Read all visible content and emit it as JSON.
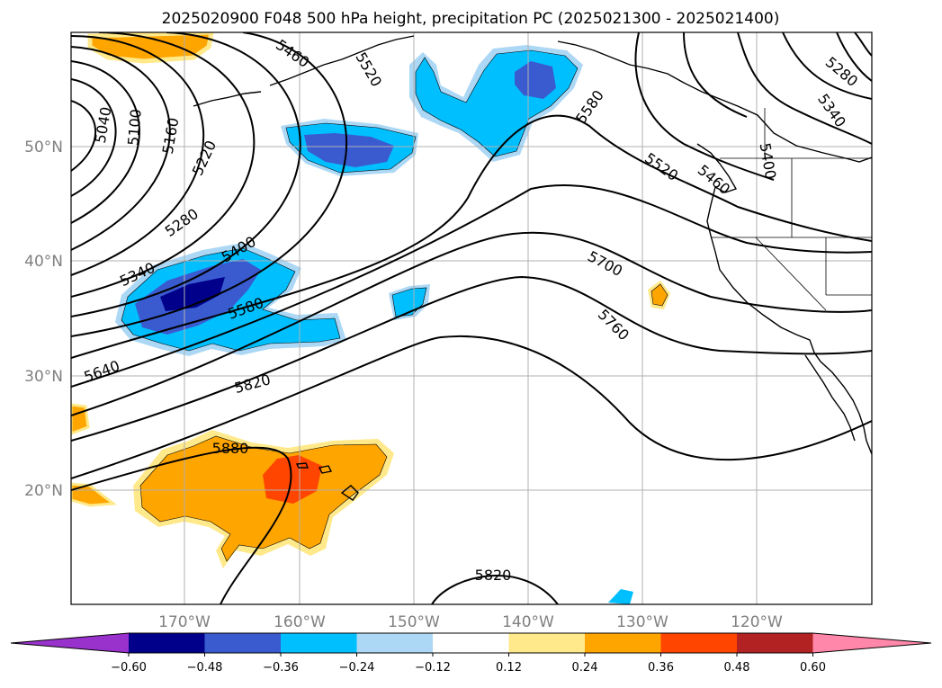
{
  "title": "2025020900 F048 500 hPa height, precipitation PC (2025021300 - 2025021400)",
  "lat_labels": [
    "50°N",
    "40°N",
    "30°N",
    "20°N"
  ],
  "lon_labels": [
    "170°W",
    "160°W",
    "150°W",
    "140°W",
    "130°W",
    "120°W"
  ],
  "contour_labels": [
    "5040",
    "5100",
    "5160",
    "5220",
    "5280",
    "5340",
    "5400",
    "5460",
    "5520",
    "5580",
    "5640",
    "5700",
    "5760",
    "5820",
    "5880",
    "5820",
    "5280",
    "5340",
    "5400",
    "5460",
    "5520",
    "5580",
    "5460",
    "5520"
  ],
  "colorbar": {
    "ticks": [
      "−0.60",
      "−0.48",
      "−0.36",
      "−0.24",
      "−0.12",
      "0.12",
      "0.24",
      "0.36",
      "0.48",
      "0.60"
    ],
    "colors": [
      "#9932cc",
      "#00008b",
      "#3a5bd0",
      "#00bfff",
      "#add8f5",
      "#ffffff",
      "#ffe98a",
      "#ffa500",
      "#ff4500",
      "#b22222",
      "#ff88aa"
    ]
  }
}
